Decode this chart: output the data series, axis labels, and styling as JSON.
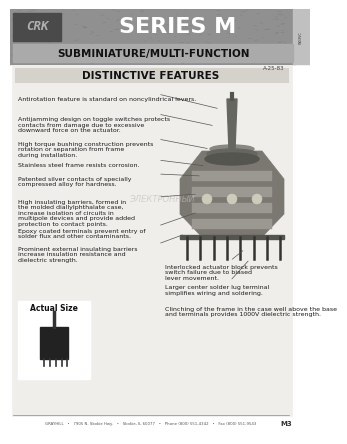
{
  "title_logo": "CRK",
  "title_series": "SERIES M",
  "title_sub": "SUBMINIATURE/MULTI-FUNCTION",
  "section_title": "DISTINCTIVE FEATURES",
  "ref_num": "A-25-83",
  "features_left": [
    "Antirotation feature is standard on noncylindrical levers.",
    "Antijamming design on toggle switches protects\ncontacts from damage due to excessive\ndownward force on the actuator.",
    "High torque bushing construction prevents\nrotation or separation from frame\nduring installation.",
    "Stainless steel frame resists corrosion.",
    "Patented silver contacts of specially\ncompressed alloy for hardness.",
    "High insulating barriers, formed in\nthe molded diallylphthalate case,\nincrease isolation of circuits in\nmultipole devices and provide added\nprotection to contact points.",
    "Epoxy coated terminals prevent entry of\nsolder flux and other contaminants.",
    "Prominent external insulating barriers\nincrease insulation resistance and\ndielectric strength."
  ],
  "features_right": [
    "Interlocked actuator block prevents\nswitch failure due to biased\nlever movement.",
    "Larger center solder lug terminal\nsimplifies wiring and soldering.",
    "Clinching of the frame in the case well above the base\nand terminals provides 1000V dielectric strength."
  ],
  "actual_size_label": "Actual Size",
  "footer_company": "GRAYHILL",
  "footer_text": "GRAYHILL   •   7905 N. Skokie Hwy.   •   Skokie, IL 60077   •   Phone (800) 551-4342   •   Fax (800) 551-9543",
  "page_num": "M3",
  "header_dark": "#5a5a5a",
  "header_mid": "#7a7a7a",
  "header_bg": "#909090",
  "sub_bg": "#b0b0b0",
  "content_bg": "#f0eeeb",
  "section_bar_bg": "#d8d5d0",
  "white": "#ffffff",
  "text_dark": "#1a1a1a",
  "text_medium": "#333333",
  "border_dark": "#555555",
  "switch_body": "#888880",
  "switch_dark": "#444440",
  "switch_light": "#aaaaA0"
}
